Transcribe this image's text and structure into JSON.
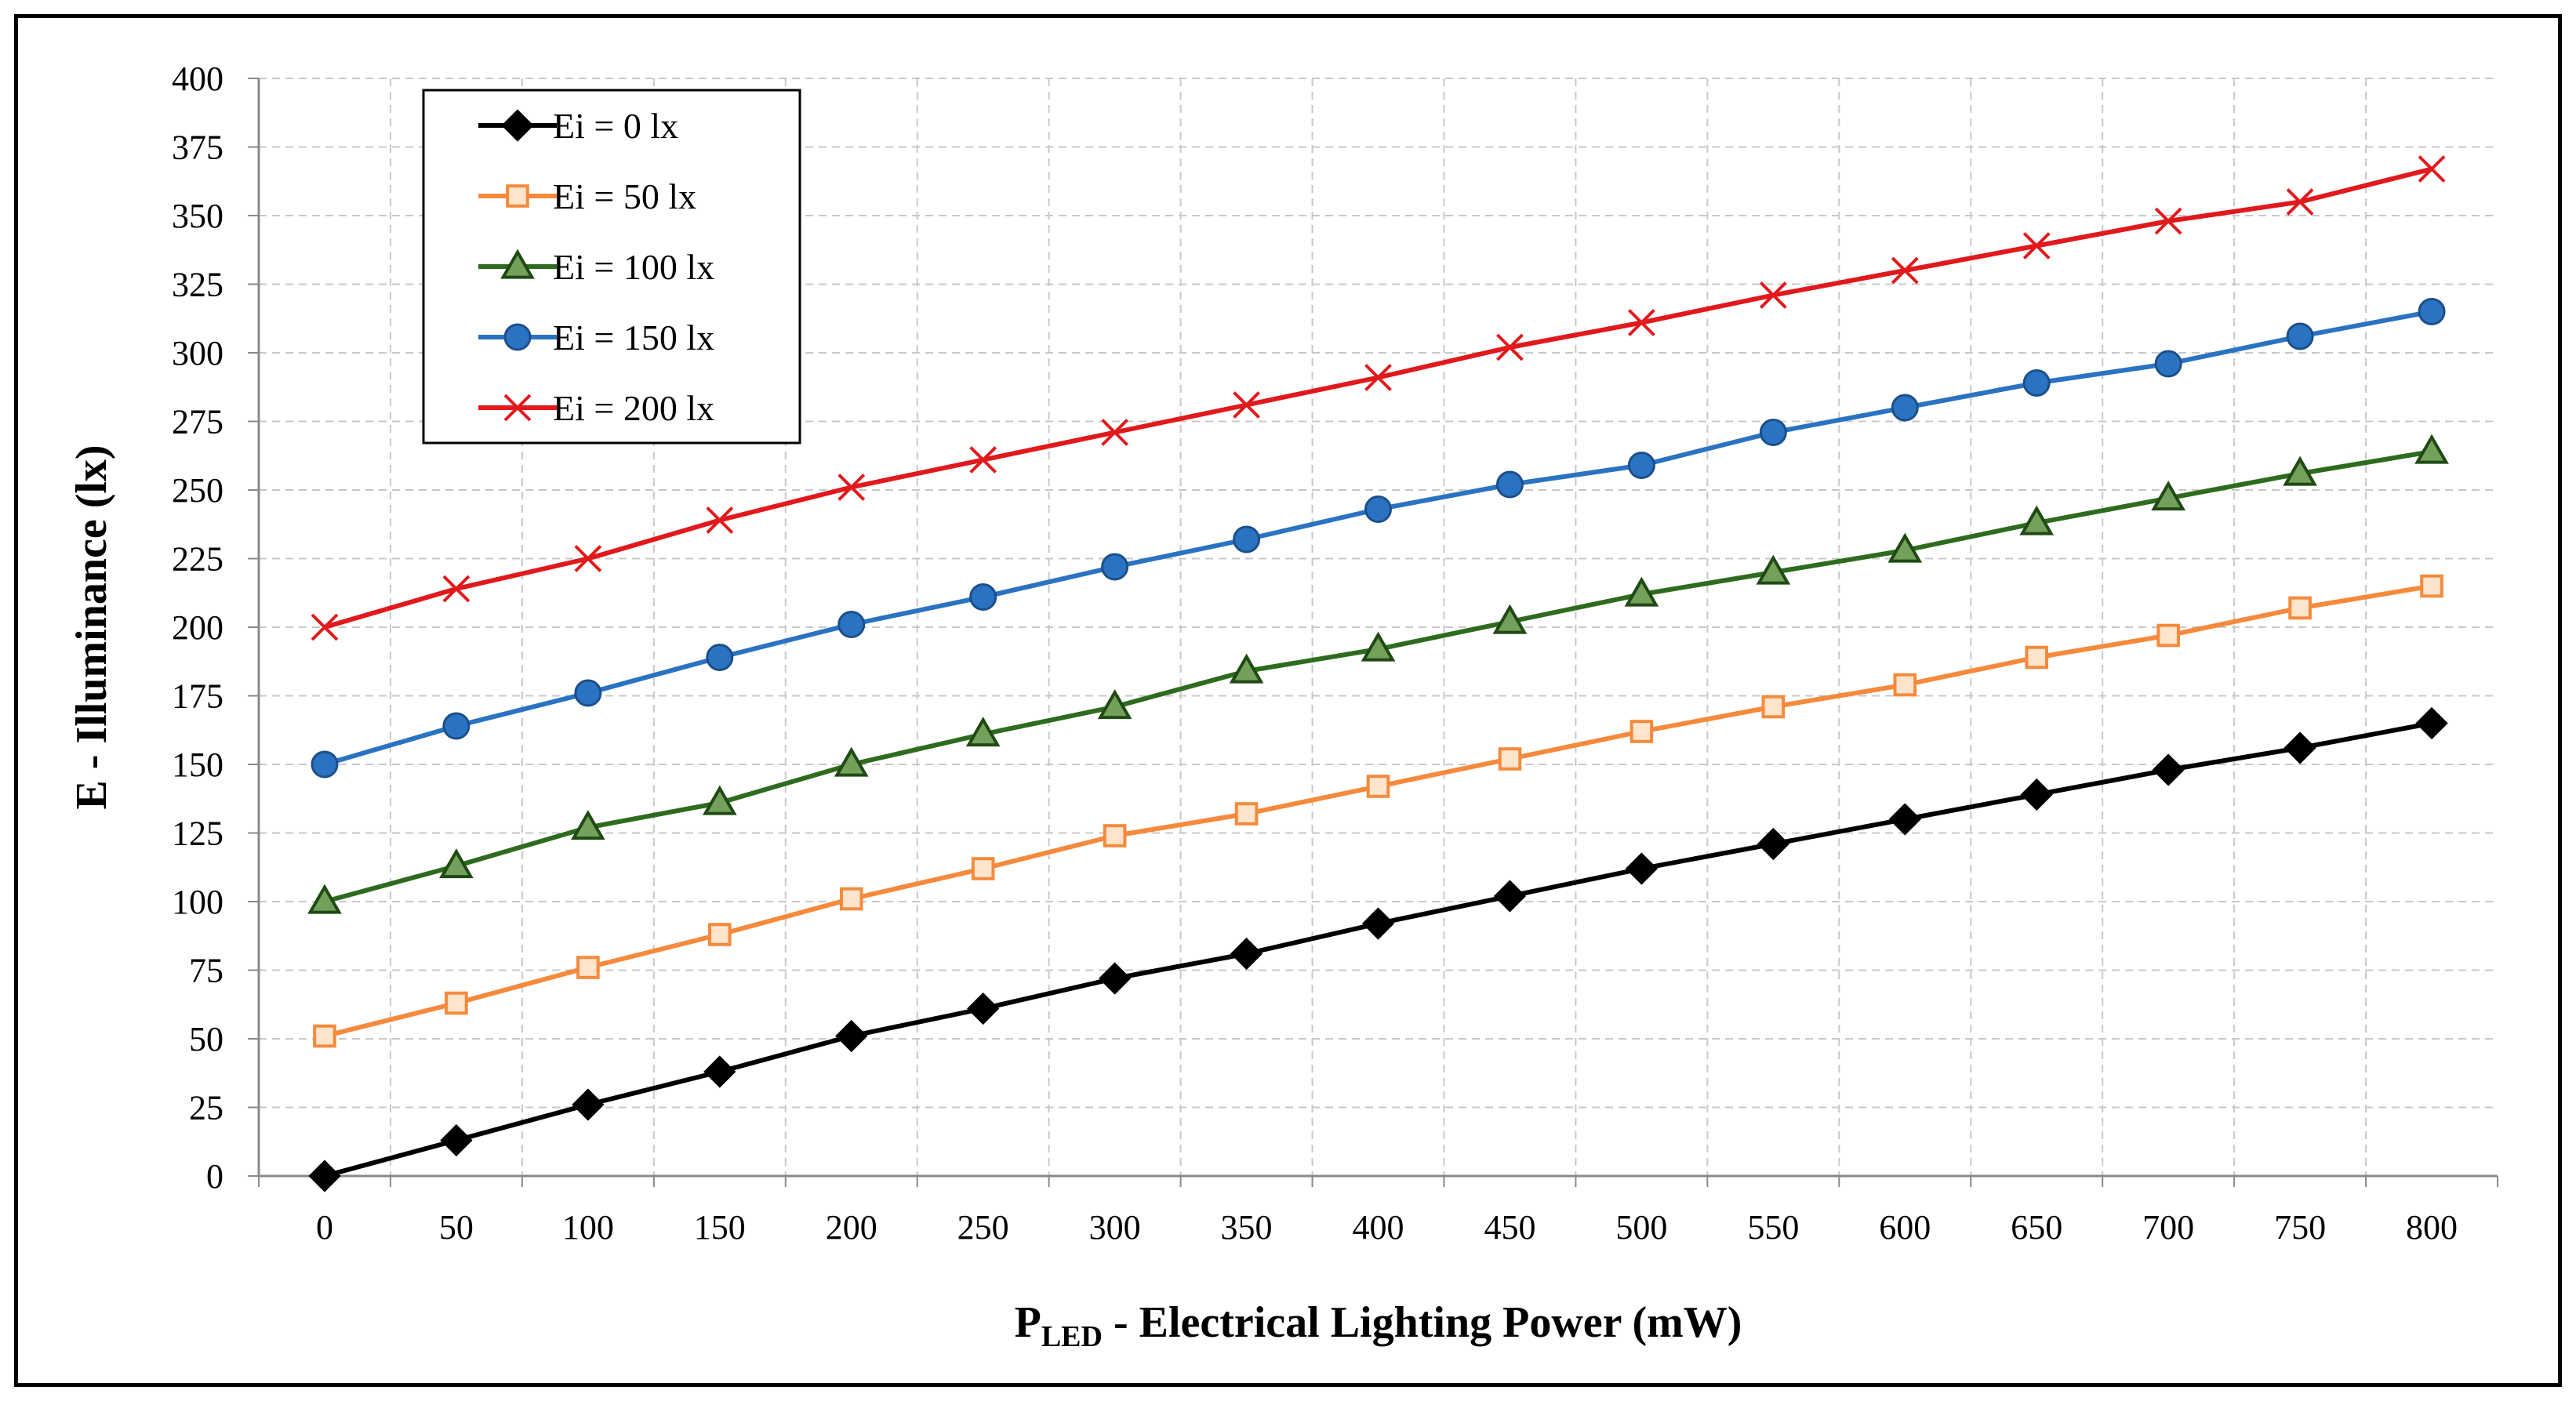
{
  "chart_data": {
    "type": "line",
    "title": "",
    "xlabel": {
      "main": "P",
      "subscript": "LED",
      "rest": " - Electrical Lighting Power (mW)"
    },
    "ylabel": "E - Illuminance  (lx)",
    "x": [
      0,
      50,
      100,
      150,
      200,
      250,
      300,
      350,
      400,
      450,
      500,
      550,
      600,
      650,
      700,
      750,
      800
    ],
    "xlim": [
      -25,
      825
    ],
    "ylim": [
      0,
      400
    ],
    "yticks": [
      0,
      25,
      50,
      75,
      100,
      125,
      150,
      175,
      200,
      225,
      250,
      275,
      300,
      325,
      350,
      375,
      400
    ],
    "grid": true,
    "legend_position": "top-left",
    "series": [
      {
        "name": "Ei = 0 lx",
        "color": "#000000",
        "marker": "diamond",
        "values": [
          0,
          13,
          26,
          38,
          51,
          61,
          72,
          81,
          92,
          102,
          112,
          121,
          130,
          139,
          148,
          156,
          165
        ]
      },
      {
        "name": "Ei = 50 lx",
        "color": "#f58a3c",
        "marker": "square",
        "values": [
          51,
          63,
          76,
          88,
          101,
          112,
          124,
          132,
          142,
          152,
          162,
          171,
          179,
          189,
          197,
          207,
          215
        ]
      },
      {
        "name": "Ei = 100 lx",
        "color": "#2e6b1e",
        "marker": "triangle",
        "values": [
          100,
          113,
          127,
          136,
          150,
          161,
          171,
          184,
          192,
          202,
          212,
          220,
          228,
          238,
          247,
          256,
          264
        ]
      },
      {
        "name": "Ei = 150 lx",
        "color": "#2a73c2",
        "marker": "circle",
        "values": [
          150,
          164,
          176,
          189,
          201,
          211,
          222,
          232,
          243,
          252,
          259,
          271,
          280,
          289,
          296,
          306,
          315
        ]
      },
      {
        "name": "Ei = 200 lx",
        "color": "#e1191c",
        "marker": "x",
        "values": [
          200,
          214,
          225,
          239,
          251,
          261,
          271,
          281,
          291,
          302,
          311,
          321,
          330,
          339,
          348,
          355,
          367
        ]
      }
    ]
  }
}
